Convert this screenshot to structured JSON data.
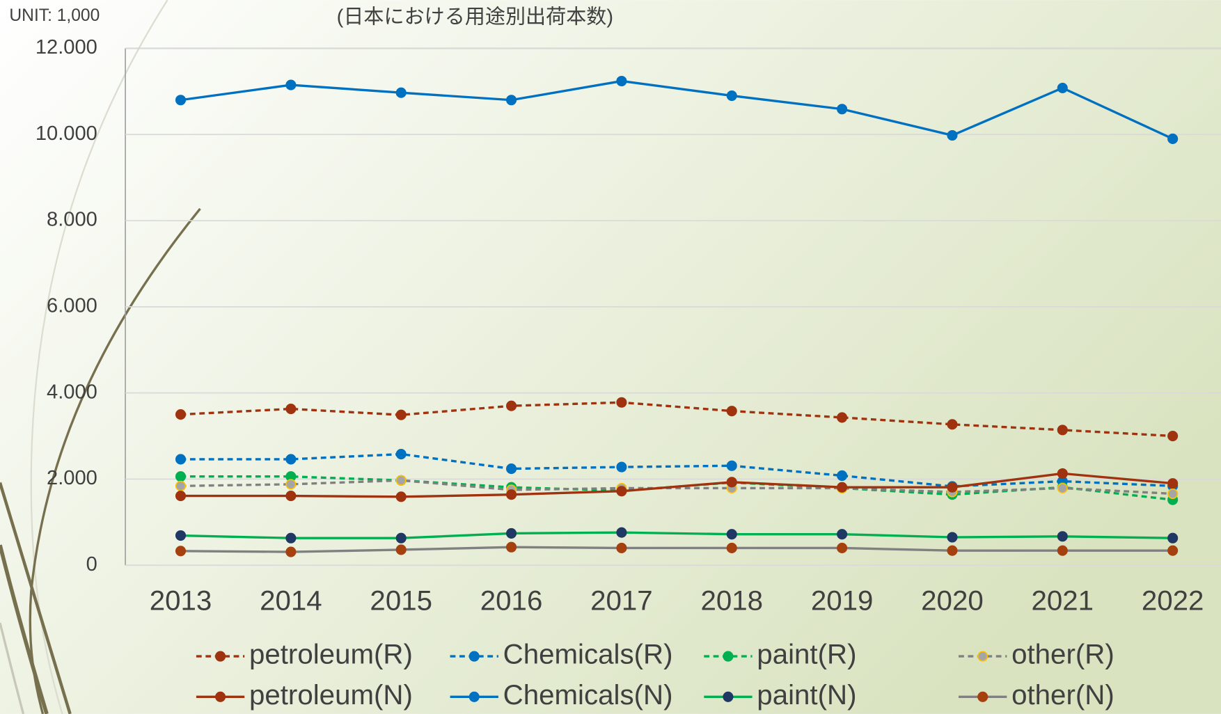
{
  "chart_data": {
    "type": "line",
    "unit_label": "UNIT: 1,000",
    "title": "(日本における用途別出荷本数)",
    "categories": [
      "2013",
      "2014",
      "2015",
      "2016",
      "2017",
      "2018",
      "2019",
      "2020",
      "2021",
      "2022"
    ],
    "ylim": [
      0,
      12000
    ],
    "yticks": [
      0,
      {
        "value": 2000,
        "label": "2.000"
      },
      {
        "value": 4000,
        "label": "4.000"
      },
      {
        "value": 6000,
        "label": "6.000"
      },
      {
        "value": 8000,
        "label": "8.000"
      },
      {
        "value": 10000,
        "label": "10.000"
      },
      {
        "value": 12000,
        "label": "12.000"
      }
    ],
    "grid": true,
    "legend": "bottom",
    "series": [
      {
        "name": "petroleum(R)",
        "color": "#a0330f",
        "marker_color": "#a0330f",
        "dash": true,
        "values": [
          3500,
          3630,
          3490,
          3700,
          3780,
          3580,
          3430,
          3270,
          3140,
          3000
        ]
      },
      {
        "name": "Chemicals(R)",
        "color": "#0070c0",
        "marker_color": "#0070c0",
        "dash": true,
        "values": [
          2460,
          2460,
          2580,
          2240,
          2280,
          2310,
          2080,
          1830,
          1950,
          1840
        ]
      },
      {
        "name": "paint(R)",
        "color": "#00b050",
        "marker_color": "#00b050",
        "dash": true,
        "values": [
          2060,
          2060,
          1970,
          1810,
          1730,
          1920,
          1790,
          1640,
          1810,
          1520
        ]
      },
      {
        "name": "other(R)",
        "color": "#808080",
        "marker_color": "#a5a5a5",
        "marker_edge": "#ffc000",
        "dash": true,
        "values": [
          1840,
          1880,
          1970,
          1750,
          1790,
          1790,
          1790,
          1700,
          1790,
          1660
        ]
      },
      {
        "name": "petroleum(N)",
        "color": "#a0330f",
        "marker_color": "#a0330f",
        "dash": false,
        "values": [
          1610,
          1610,
          1590,
          1640,
          1720,
          1930,
          1810,
          1810,
          2130,
          1900
        ]
      },
      {
        "name": "Chemicals(N)",
        "color": "#0070c0",
        "marker_color": "#0070c0",
        "dash": false,
        "values": [
          10800,
          11150,
          10970,
          10800,
          11240,
          10900,
          10590,
          9980,
          11080,
          9900
        ]
      },
      {
        "name": "paint(N)",
        "color": "#00b050",
        "marker_color": "#1f3864",
        "dash": false,
        "values": [
          690,
          630,
          630,
          740,
          760,
          720,
          720,
          650,
          670,
          630
        ]
      },
      {
        "name": "other(N)",
        "color": "#808080",
        "marker_color": "#a5400f",
        "dash": false,
        "values": [
          330,
          310,
          360,
          420,
          400,
          400,
          400,
          340,
          340,
          340
        ]
      }
    ]
  }
}
